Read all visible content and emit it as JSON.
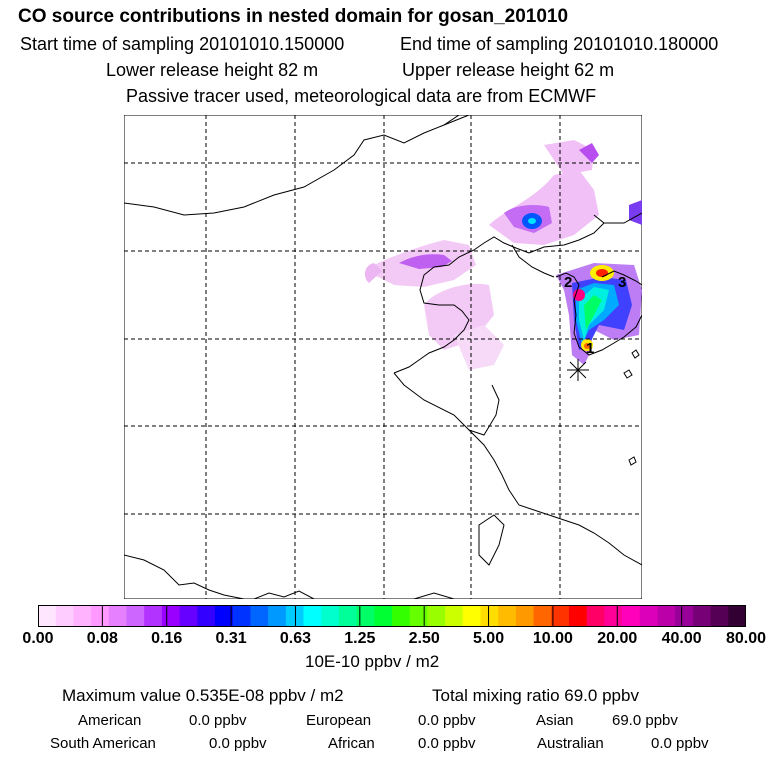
{
  "header": {
    "title": "CO  source contributions in nested domain for gosan_201010",
    "start_time": "Start time of sampling 20101010.150000",
    "end_time": "End time of sampling 20101010.180000",
    "lower_release": "Lower release height   82 m",
    "upper_release": "Upper release height   62 m",
    "tracer_note": "Passive tracer used, meteorological data are from ECMWF"
  },
  "map": {
    "station_labels": [
      "1",
      "2",
      "3"
    ],
    "receptor_marker": "gosan"
  },
  "legend": {
    "tick_labels": [
      "0.00",
      "0.08",
      "0.16",
      "0.31",
      "0.63",
      "1.25",
      "2.50",
      "5.00",
      "10.00",
      "20.00",
      "40.00",
      "80.00"
    ],
    "unit_label": "10E-10 ppbv / m2",
    "colors": [
      "#ffe6ff",
      "#ffccff",
      "#ffb3ff",
      "#ff99ff",
      "#e680ff",
      "#cc66ff",
      "#b233ff",
      "#9900ff",
      "#6600ff",
      "#3300ff",
      "#0000ff",
      "#0033ff",
      "#0066ff",
      "#0099ff",
      "#00ccff",
      "#00ffff",
      "#00ffcc",
      "#00ff99",
      "#00ff66",
      "#00ff33",
      "#33ff00",
      "#66ff00",
      "#99ff00",
      "#ccff00",
      "#ffff00",
      "#ffdd00",
      "#ffbb00",
      "#ff9900",
      "#ff6600",
      "#ff3300",
      "#ff0000",
      "#ff0066",
      "#ff0099",
      "#ff00bb",
      "#dd00bb",
      "#bb00aa",
      "#990099",
      "#770077",
      "#550055",
      "#330033"
    ]
  },
  "stats": {
    "max_value": "Maximum value  0.535E-08 ppbv / m2",
    "total_mixing": "Total mixing ratio       69.0 ppbv",
    "regions": [
      {
        "name": "American",
        "value": "0.0 ppbv"
      },
      {
        "name": "European",
        "value": "0.0 ppbv"
      },
      {
        "name": "Asian",
        "value": "69.0 ppbv"
      },
      {
        "name": "South American",
        "value": "0.0 ppbv"
      },
      {
        "name": "African",
        "value": "0.0 ppbv"
      },
      {
        "name": "Australian",
        "value": "0.0 ppbv"
      }
    ]
  }
}
